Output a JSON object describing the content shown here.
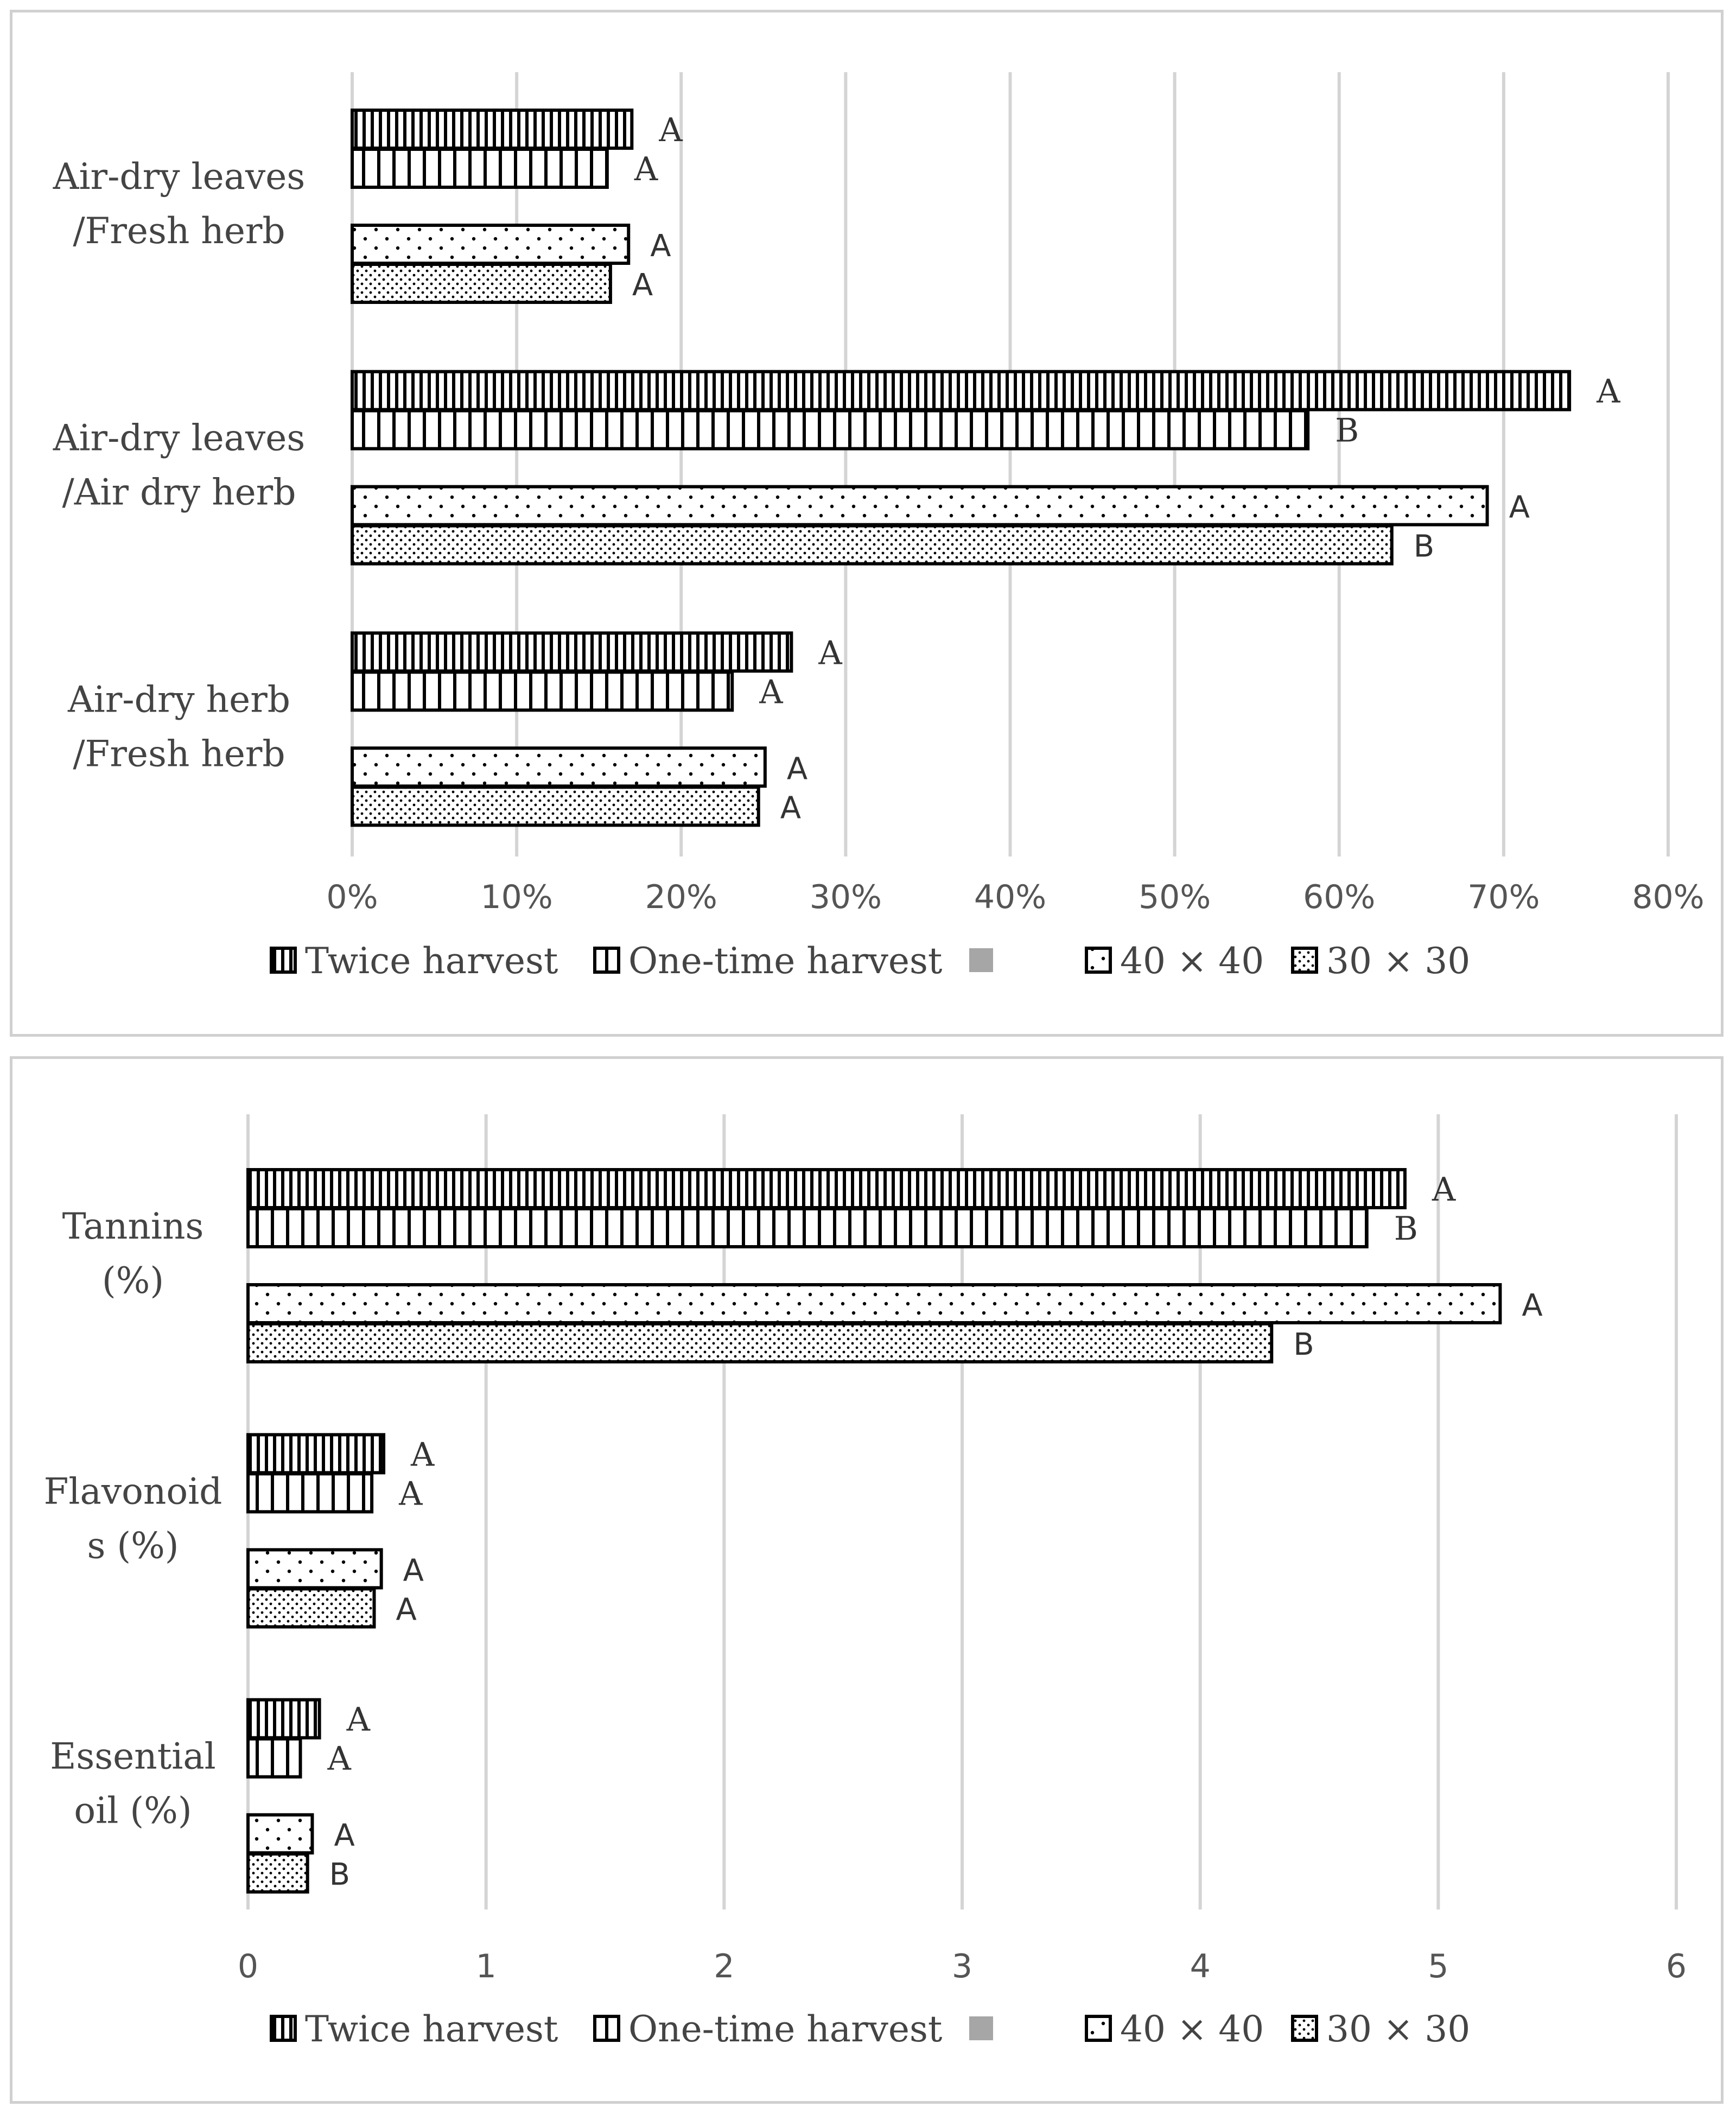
{
  "chart_data": [
    {
      "type": "bar",
      "orientation": "horizontal",
      "title": "",
      "categories": [
        "Air-dry leaves\n/Fresh herb",
        "Air-dry leaves\n/Air dry herb",
        "Air-dry herb\n/Fresh herb"
      ],
      "series": [
        {
          "name": "Twice harvest",
          "pattern": "dense-vertical",
          "values": [
            0.17,
            0.74,
            0.267
          ],
          "labels": [
            "A",
            "A",
            "A"
          ]
        },
        {
          "name": "One-time harvest",
          "pattern": "sparse-vertical",
          "values": [
            0.155,
            0.581,
            0.231
          ],
          "labels": [
            "A",
            "B",
            "A"
          ]
        },
        {
          "name": "",
          "pattern": "gray-solid",
          "values": [
            null,
            null,
            null
          ],
          "labels": [
            "",
            "",
            ""
          ]
        },
        {
          "name": "40 × 40",
          "pattern": "sparse-dots",
          "values": [
            0.168,
            0.69,
            0.251
          ],
          "labels": [
            "A",
            "A",
            "A"
          ]
        },
        {
          "name": "30 × 30",
          "pattern": "dense-dots",
          "values": [
            0.157,
            0.632,
            0.247
          ],
          "labels": [
            "A",
            "B",
            "A"
          ]
        }
      ],
      "xlim": [
        0,
        0.8
      ],
      "xticks": [
        "0%",
        "10%",
        "20%",
        "30%",
        "40%",
        "50%",
        "60%",
        "70%",
        "80%"
      ],
      "xlabel": "",
      "ylabel": "",
      "grid": "vertical",
      "legend": "bottom"
    },
    {
      "type": "bar",
      "orientation": "horizontal",
      "title": "",
      "categories": [
        "Tannins\n(%)",
        "Flavonoid\ns (%)",
        "Essential\noil (%)"
      ],
      "series": [
        {
          "name": "Twice harvest",
          "pattern": "dense-vertical",
          "values": [
            4.86,
            0.57,
            0.3
          ],
          "labels": [
            "A",
            "A",
            "A"
          ]
        },
        {
          "name": "One-time harvest",
          "pattern": "sparse-vertical",
          "values": [
            4.7,
            0.52,
            0.22
          ],
          "labels": [
            "B",
            "A",
            "A"
          ]
        },
        {
          "name": "",
          "pattern": "gray-solid",
          "values": [
            null,
            null,
            null
          ],
          "labels": [
            "",
            "",
            ""
          ]
        },
        {
          "name": "40 × 40",
          "pattern": "sparse-dots",
          "values": [
            5.26,
            0.56,
            0.27
          ],
          "labels": [
            "A",
            "A",
            "A"
          ]
        },
        {
          "name": "30 × 30",
          "pattern": "dense-dots",
          "values": [
            4.3,
            0.53,
            0.25
          ],
          "labels": [
            "B",
            "A",
            "B"
          ]
        }
      ],
      "xlim": [
        0,
        6
      ],
      "xticks": [
        "0",
        "1",
        "2",
        "3",
        "4",
        "5",
        "6"
      ],
      "xlabel": "",
      "ylabel": "",
      "grid": "vertical",
      "legend": "bottom"
    }
  ]
}
